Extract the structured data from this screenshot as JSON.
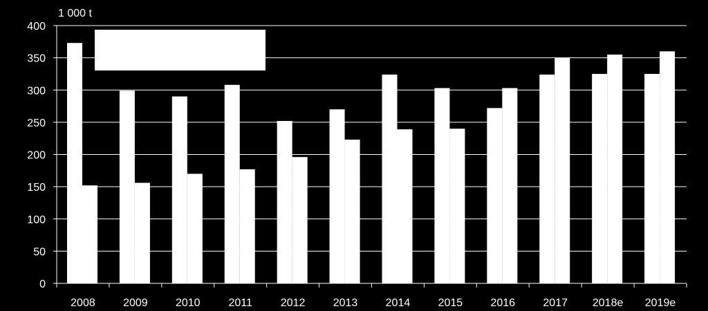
{
  "chart_data": {
    "type": "bar",
    "title": "",
    "xlabel": "",
    "ylabel": "1 000 t",
    "ylim": [
      0,
      400
    ],
    "yticks": [
      0,
      50,
      100,
      150,
      200,
      250,
      300,
      350,
      400
    ],
    "grid": true,
    "legend": "top-left",
    "categories": [
      "2008",
      "2009",
      "2010",
      "2011",
      "2012",
      "2013",
      "2014",
      "2015",
      "2016",
      "2017",
      "2018e",
      "2019e"
    ],
    "series": [
      {
        "values": [
          373,
          299,
          290,
          308,
          252,
          270,
          324,
          303,
          272,
          324,
          325,
          325
        ]
      },
      {
        "values": [
          152,
          156,
          170,
          177,
          196,
          223,
          239,
          240,
          303,
          350,
          355,
          360
        ]
      }
    ],
    "colors": {
      "background": "#000000",
      "bars": "#ffffff",
      "grid": "#ffffff",
      "text": "#ffffff"
    }
  }
}
